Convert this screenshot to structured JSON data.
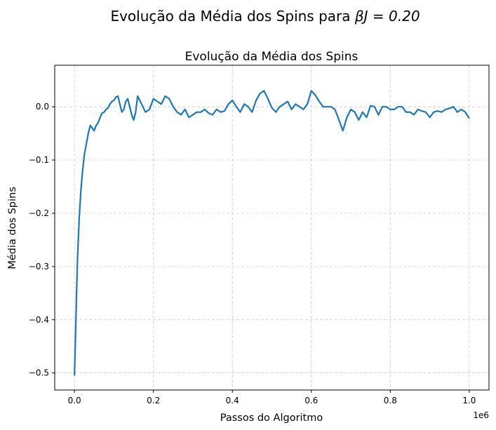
{
  "figure": {
    "suptitle_prefix": "Evolução da Média dos Spins para ",
    "suptitle_math": "βJ = 0.20"
  },
  "chart_data": {
    "type": "line",
    "title": "Evolução da Média dos Spins",
    "xlabel": "Passos do Algoritmo",
    "ylabel": "Média dos Spins",
    "x_offset_label": "1e6",
    "xlim": [
      -0.05,
      1.05
    ],
    "ylim": [
      -0.532,
      0.078
    ],
    "grid": true,
    "xticks": [
      0.0,
      0.2,
      0.4,
      0.6,
      0.8,
      1.0
    ],
    "xtick_labels": [
      "0.0",
      "0.2",
      "0.4",
      "0.6",
      "0.8",
      "1.0"
    ],
    "yticks": [
      -0.5,
      -0.4,
      -0.3,
      -0.2,
      -0.1,
      0.0
    ],
    "ytick_labels": [
      "−0.5",
      "−0.4",
      "−0.3",
      "−0.2",
      "−0.1",
      "0.0"
    ],
    "series": [
      {
        "color": "#1f77b4",
        "x": [
          0.0,
          0.002,
          0.005,
          0.008,
          0.012,
          0.016,
          0.02,
          0.025,
          0.03,
          0.035,
          0.04,
          0.045,
          0.05,
          0.055,
          0.06,
          0.065,
          0.07,
          0.075,
          0.08,
          0.085,
          0.09,
          0.095,
          0.1,
          0.105,
          0.11,
          0.115,
          0.12,
          0.125,
          0.13,
          0.135,
          0.14,
          0.145,
          0.15,
          0.155,
          0.16,
          0.17,
          0.18,
          0.19,
          0.2,
          0.21,
          0.22,
          0.23,
          0.24,
          0.25,
          0.26,
          0.27,
          0.28,
          0.29,
          0.3,
          0.31,
          0.32,
          0.33,
          0.34,
          0.35,
          0.36,
          0.37,
          0.38,
          0.39,
          0.4,
          0.41,
          0.42,
          0.43,
          0.44,
          0.45,
          0.46,
          0.47,
          0.48,
          0.49,
          0.5,
          0.51,
          0.52,
          0.53,
          0.54,
          0.55,
          0.56,
          0.57,
          0.58,
          0.59,
          0.6,
          0.61,
          0.62,
          0.63,
          0.64,
          0.65,
          0.66,
          0.67,
          0.68,
          0.69,
          0.7,
          0.71,
          0.72,
          0.73,
          0.74,
          0.75,
          0.76,
          0.77,
          0.78,
          0.79,
          0.8,
          0.81,
          0.82,
          0.83,
          0.84,
          0.85,
          0.86,
          0.87,
          0.88,
          0.89,
          0.9,
          0.91,
          0.92,
          0.93,
          0.94,
          0.95,
          0.96,
          0.97,
          0.98,
          0.99,
          1.0
        ],
        "y": [
          -0.505,
          -0.45,
          -0.36,
          -0.28,
          -0.21,
          -0.16,
          -0.125,
          -0.09,
          -0.07,
          -0.05,
          -0.035,
          -0.04,
          -0.045,
          -0.035,
          -0.03,
          -0.02,
          -0.012,
          -0.01,
          -0.005,
          -0.002,
          0.005,
          0.01,
          0.012,
          0.018,
          0.02,
          0.005,
          -0.01,
          -0.005,
          0.01,
          0.015,
          0.0,
          -0.015,
          -0.025,
          -0.01,
          0.02,
          0.005,
          -0.01,
          -0.005,
          0.015,
          0.01,
          0.005,
          0.02,
          0.015,
          0.0,
          -0.01,
          -0.015,
          -0.005,
          -0.02,
          -0.015,
          -0.01,
          -0.01,
          -0.005,
          -0.012,
          -0.015,
          -0.005,
          -0.01,
          -0.008,
          0.005,
          0.012,
          0.0,
          -0.01,
          0.005,
          0.0,
          -0.01,
          0.012,
          0.025,
          0.03,
          0.015,
          -0.002,
          -0.01,
          0.0,
          0.005,
          0.01,
          -0.005,
          0.005,
          0.0,
          -0.005,
          0.005,
          0.03,
          0.022,
          0.01,
          0.0,
          0.0,
          0.0,
          -0.005,
          -0.025,
          -0.045,
          -0.02,
          -0.005,
          -0.01,
          -0.025,
          -0.01,
          -0.02,
          0.002,
          0.0,
          -0.015,
          0.0,
          0.0,
          -0.005,
          -0.005,
          0.0,
          0.0,
          -0.01,
          -0.01,
          -0.015,
          -0.005,
          -0.008,
          -0.01,
          -0.02,
          -0.01,
          -0.008,
          -0.01,
          -0.005,
          -0.003,
          0.0,
          -0.01,
          -0.005,
          -0.01,
          -0.022
        ]
      }
    ]
  }
}
